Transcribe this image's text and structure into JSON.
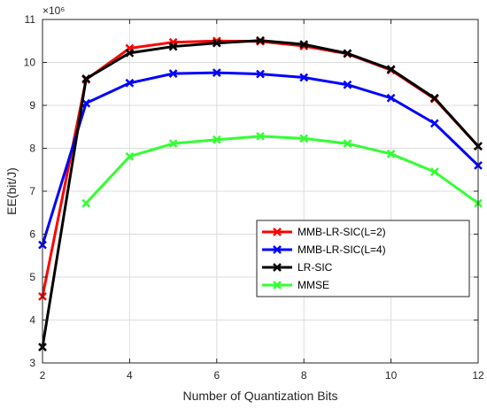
{
  "chart_data": {
    "type": "line",
    "xlabel": "Number of Quantization Bits",
    "ylabel": "EE(bit/J)",
    "y_multiplier_label": "×10⁶",
    "xlim": [
      2,
      12
    ],
    "ylim": [
      3,
      11
    ],
    "xticks": [
      2,
      4,
      6,
      8,
      10,
      12
    ],
    "yticks": [
      3,
      4,
      5,
      6,
      7,
      8,
      9,
      10,
      11
    ],
    "grid": true,
    "legend_position": "middle-right",
    "series": [
      {
        "name": "MMB-LR-SIC(L=2)",
        "color": "#ff0000",
        "x": [
          2,
          3,
          4,
          5,
          6,
          7,
          8,
          9,
          10,
          11,
          12
        ],
        "y": [
          4.55,
          9.6,
          10.33,
          10.47,
          10.5,
          10.49,
          10.38,
          10.2,
          9.82,
          9.15,
          8.05
        ]
      },
      {
        "name": "MMB-LR-SIC(L=4)",
        "color": "#0000ff",
        "x": [
          2,
          3,
          4,
          5,
          6,
          7,
          8,
          9,
          10,
          11,
          12
        ],
        "y": [
          5.75,
          9.05,
          9.52,
          9.74,
          9.76,
          9.73,
          9.65,
          9.48,
          9.17,
          8.58,
          7.6
        ]
      },
      {
        "name": "LR-SIC",
        "color": "#000000",
        "x": [
          2,
          3,
          4,
          5,
          6,
          7,
          8,
          9,
          10,
          11,
          12
        ],
        "y": [
          3.37,
          9.62,
          10.22,
          10.37,
          10.45,
          10.51,
          10.42,
          10.21,
          9.84,
          9.17,
          8.05
        ]
      },
      {
        "name": "MMSE",
        "color": "#33ff33",
        "x": [
          3,
          4,
          5,
          6,
          7,
          8,
          9,
          10,
          11,
          12
        ],
        "y": [
          6.72,
          7.81,
          8.11,
          8.2,
          8.28,
          8.23,
          8.11,
          7.87,
          7.45,
          6.72
        ]
      }
    ]
  }
}
